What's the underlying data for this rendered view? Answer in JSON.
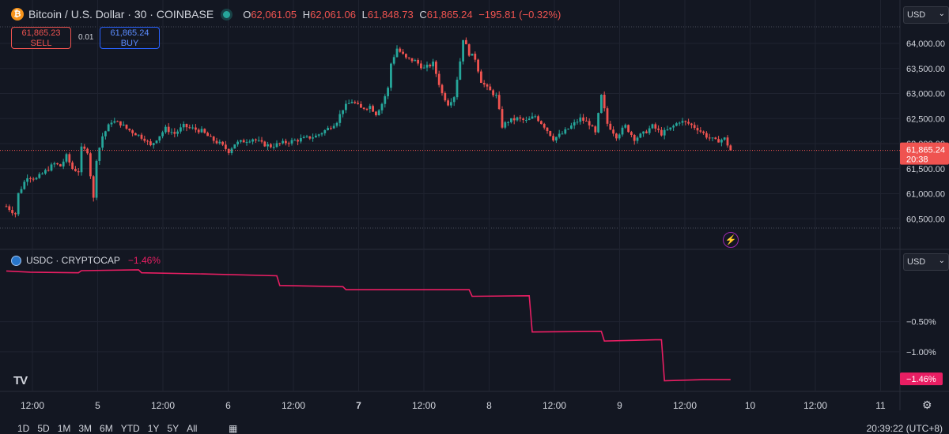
{
  "header": {
    "symbol_title": "Bitcoin / U.S. Dollar · 30 · COINBASE",
    "ohlc": [
      {
        "k": "O",
        "v": "62,061.05"
      },
      {
        "k": "H",
        "v": "62,061.06"
      },
      {
        "k": "L",
        "v": "61,848.73"
      },
      {
        "k": "C",
        "v": "61,865.24"
      }
    ],
    "change": "−195.81 (−0.32%)"
  },
  "trade": {
    "sell_price": "61,865.23",
    "sell_label": "SELL",
    "spread": "0.01",
    "buy_price": "61,865.24",
    "buy_label": "BUY"
  },
  "currency": {
    "main": "USD",
    "indicator": "USD"
  },
  "indicator": {
    "title": "USDC · CRYPTOCAP",
    "change": "−1.46%"
  },
  "bottom": {
    "ranges": [
      "1D",
      "5D",
      "1M",
      "3M",
      "6M",
      "YTD",
      "1Y",
      "5Y",
      "All"
    ],
    "clock": "20:39:22 (UTC+8)"
  },
  "colors": {
    "up": "#26a69a",
    "down": "#ef5350",
    "background": "#131722",
    "grid": "#1f2330",
    "usdc_line": "#e91e63",
    "price_label": "#ef5350"
  },
  "icons": [
    "bitcoin-icon",
    "live-dot-icon",
    "usdc-icon",
    "chevron-down-icon",
    "tradingview-logo-icon",
    "lightning-icon",
    "settings-gear-icon",
    "calendar-icon"
  ],
  "chart_data": [
    {
      "type": "candlestick",
      "title": "Bitcoin / U.S. Dollar · 30 · COINBASE",
      "ylim": [
        60300,
        64300
      ],
      "y_ticks": [
        "64,000.00",
        "63,500.00",
        "63,000.00",
        "62,500.00",
        "62,000.00",
        "61,500.00",
        "61,000.00",
        "60,500.00"
      ],
      "y_tick_values": [
        64000,
        63500,
        63000,
        62500,
        62000,
        61500,
        61000,
        60500
      ],
      "x_labels": [
        "12:00",
        "5",
        "12:00",
        "6",
        "12:00",
        "7",
        "12:00",
        "8",
        "12:00",
        "9",
        "12:00",
        "10",
        "12:00",
        "11"
      ],
      "x_label_bold": [
        false,
        false,
        false,
        false,
        false,
        true,
        false,
        false,
        false,
        false,
        false,
        false,
        false,
        false
      ],
      "last_price": "61,865.24",
      "countdown": "20:38",
      "last_value": 61865.24,
      "close_path": [
        [
          0,
          60750
        ],
        [
          3,
          60600
        ],
        [
          4,
          61000
        ],
        [
          7,
          61350
        ],
        [
          10,
          61300
        ],
        [
          13,
          61450
        ],
        [
          16,
          61600
        ],
        [
          18,
          61550
        ],
        [
          20,
          61750
        ],
        [
          22,
          61500
        ],
        [
          24,
          61450
        ],
        [
          25,
          61900
        ],
        [
          27,
          61850
        ],
        [
          29,
          60900
        ],
        [
          30,
          61700
        ],
        [
          32,
          62150
        ],
        [
          35,
          62450
        ],
        [
          38,
          62400
        ],
        [
          40,
          62300
        ],
        [
          43,
          62200
        ],
        [
          46,
          62100
        ],
        [
          48,
          61950
        ],
        [
          50,
          62100
        ],
        [
          53,
          62300
        ],
        [
          56,
          62200
        ],
        [
          59,
          62350
        ],
        [
          62,
          62300
        ],
        [
          65,
          62250
        ],
        [
          68,
          62100
        ],
        [
          71,
          62000
        ],
        [
          74,
          61850
        ],
        [
          76,
          62000
        ],
        [
          79,
          62050
        ],
        [
          82,
          62100
        ],
        [
          85,
          62000
        ],
        [
          88,
          61950
        ],
        [
          91,
          62000
        ],
        [
          95,
          62050
        ],
        [
          99,
          62100
        ],
        [
          103,
          62150
        ],
        [
          107,
          62300
        ],
        [
          110,
          62450
        ],
        [
          112,
          62700
        ],
        [
          115,
          62850
        ],
        [
          118,
          62700
        ],
        [
          121,
          62750
        ],
        [
          123,
          62600
        ],
        [
          125,
          62800
        ],
        [
          127,
          63100
        ],
        [
          128,
          63600
        ],
        [
          130,
          63900
        ],
        [
          133,
          63700
        ],
        [
          136,
          63650
        ],
        [
          139,
          63500
        ],
        [
          142,
          63600
        ],
        [
          145,
          63000
        ],
        [
          147,
          62800
        ],
        [
          149,
          62950
        ],
        [
          150,
          63300
        ],
        [
          151,
          63650
        ],
        [
          152,
          64100
        ],
        [
          154,
          63800
        ],
        [
          156,
          63700
        ],
        [
          158,
          63250
        ],
        [
          160,
          63100
        ],
        [
          163,
          62950
        ],
        [
          165,
          62350
        ],
        [
          167,
          62450
        ],
        [
          170,
          62500
        ],
        [
          173,
          62450
        ],
        [
          176,
          62550
        ],
        [
          179,
          62350
        ],
        [
          182,
          62100
        ],
        [
          185,
          62200
        ],
        [
          188,
          62350
        ],
        [
          191,
          62500
        ],
        [
          194,
          62400
        ],
        [
          196,
          62200
        ],
        [
          198,
          62950
        ],
        [
          200,
          62400
        ],
        [
          203,
          62150
        ],
        [
          206,
          62350
        ],
        [
          209,
          62100
        ],
        [
          212,
          62200
        ],
        [
          215,
          62350
        ],
        [
          218,
          62200
        ],
        [
          221,
          62300
        ],
        [
          224,
          62450
        ],
        [
          227,
          62400
        ],
        [
          230,
          62300
        ],
        [
          233,
          62150
        ],
        [
          236,
          62050
        ],
        [
          239,
          62100
        ],
        [
          241,
          61865
        ]
      ]
    },
    {
      "type": "line",
      "title": "USDC · CRYPTOCAP",
      "series": [
        {
          "name": "USDC",
          "values": [
            [
              0,
              0.34
            ],
            [
              8,
              0.32
            ],
            [
              24,
              0.31
            ],
            [
              25,
              0.345
            ],
            [
              44,
              0.36
            ],
            [
              45,
              0.31
            ],
            [
              66,
              0.29
            ],
            [
              90,
              0.26
            ],
            [
              91,
              0.1
            ],
            [
              112,
              0.08
            ],
            [
              113,
              0.03
            ],
            [
              154,
              0.03
            ],
            [
              155,
              -0.08
            ],
            [
              174,
              -0.07
            ],
            [
              175,
              -0.67
            ],
            [
              198,
              -0.66
            ],
            [
              199,
              -0.82
            ],
            [
              216,
              -0.8
            ],
            [
              218,
              -0.8
            ],
            [
              219,
              -1.48
            ],
            [
              232,
              -1.46
            ],
            [
              241,
              -1.46
            ]
          ]
        }
      ],
      "ylim": [
        -1.55,
        0.45
      ],
      "y_ticks": [
        "−0.50%",
        "−1.00%"
      ],
      "y_tick_values": [
        -0.5,
        -1.0
      ],
      "last_label": "−1.46%",
      "last_value": -1.46
    }
  ]
}
